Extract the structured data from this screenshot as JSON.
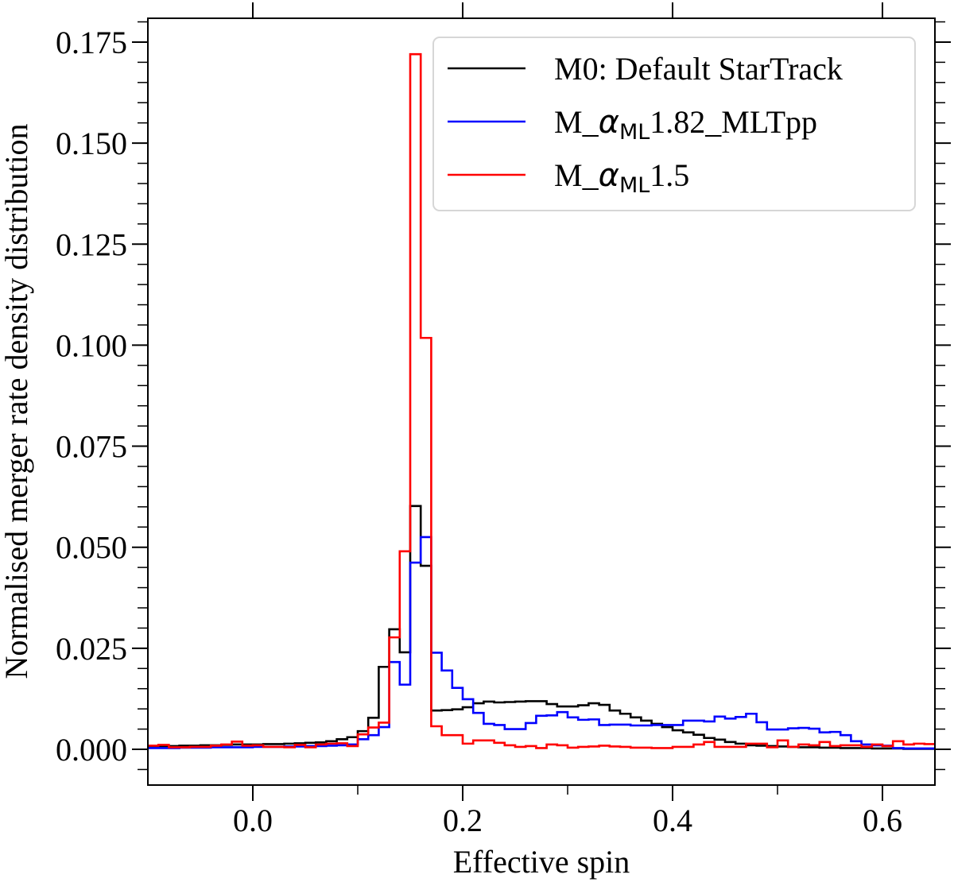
{
  "chart_data": {
    "type": "line",
    "style": "step-histogram",
    "title": "",
    "xlabel": "Effective spin",
    "ylabel": "Normalised merger rate density distribution",
    "xlim": [
      -0.1,
      0.65
    ],
    "ylim": [
      -0.009,
      0.181
    ],
    "bin_start": -0.1,
    "bin_width": 0.01,
    "x_ticks": [
      "0.0",
      "0.2",
      "0.4",
      "0.6"
    ],
    "x_tick_values": [
      0.0,
      0.2,
      0.4,
      0.6
    ],
    "y_ticks": [
      "0.000",
      "0.025",
      "0.050",
      "0.075",
      "0.100",
      "0.125",
      "0.150",
      "0.175"
    ],
    "y_tick_values": [
      0,
      0.025,
      0.05,
      0.075,
      0.1,
      0.125,
      0.15,
      0.175
    ],
    "legend_position": "top-right",
    "series": [
      {
        "name": "M0: Default StarTrack",
        "legend": {
          "prefix": "M0: Default StarTrack",
          "sym": "",
          "sub": "",
          "suffix": ""
        },
        "color": "#000000",
        "values": [
          0.0008,
          0.0008,
          0.0008,
          0.0009,
          0.0009,
          0.001,
          0.001,
          0.0011,
          0.0012,
          0.0012,
          0.0012,
          0.0013,
          0.0013,
          0.0014,
          0.0015,
          0.0016,
          0.0017,
          0.002,
          0.0025,
          0.003,
          0.0045,
          0.0078,
          0.0204,
          0.0297,
          0.024,
          0.0602,
          0.0454,
          0.0096,
          0.0097,
          0.0099,
          0.0104,
          0.0114,
          0.0118,
          0.0116,
          0.0117,
          0.0118,
          0.0119,
          0.0119,
          0.0112,
          0.0106,
          0.0106,
          0.0109,
          0.0114,
          0.011,
          0.0096,
          0.0088,
          0.0079,
          0.0071,
          0.0063,
          0.0055,
          0.0047,
          0.0042,
          0.0036,
          0.0028,
          0.0024,
          0.0018,
          0.0014,
          0.001,
          0.0009,
          0.0008,
          0.0007,
          0.0006,
          0.0005,
          0.0005,
          0.0004,
          0.0004,
          0.0003,
          0.0003,
          0.0003,
          0.0002,
          0.0002,
          0.0002,
          0.0001,
          0.0001,
          0.0001
        ]
      },
      {
        "name": "M_αML1.82_MLTpp",
        "legend": {
          "prefix": "M_",
          "sym": "α",
          "sub": "ML",
          "suffix": "1.82_MLTpp"
        },
        "color": "#0000ff",
        "values": [
          0.0003,
          0.0003,
          0.0003,
          0.0004,
          0.0004,
          0.0004,
          0.0005,
          0.0005,
          0.0005,
          0.0005,
          0.0006,
          0.0006,
          0.0006,
          0.0007,
          0.0007,
          0.0008,
          0.0008,
          0.0009,
          0.001,
          0.0012,
          0.0025,
          0.0035,
          0.0055,
          0.0216,
          0.016,
          0.0462,
          0.0525,
          0.0239,
          0.0195,
          0.0152,
          0.0124,
          0.009,
          0.0063,
          0.006,
          0.005,
          0.005,
          0.0065,
          0.0083,
          0.0084,
          0.0092,
          0.0079,
          0.0073,
          0.0074,
          0.006,
          0.0061,
          0.0061,
          0.0059,
          0.0059,
          0.006,
          0.006,
          0.006,
          0.0071,
          0.0071,
          0.0069,
          0.0081,
          0.0076,
          0.008,
          0.0088,
          0.0067,
          0.0049,
          0.0049,
          0.0052,
          0.0053,
          0.0051,
          0.0042,
          0.0043,
          0.0035,
          0.002,
          0.0012,
          0.001,
          0.0009,
          0.0003,
          0.0002,
          0.0002,
          0.0002
        ]
      },
      {
        "name": "M_αML1.5",
        "legend": {
          "prefix": "M_",
          "sym": "α",
          "sub": "ML",
          "suffix": "1.5"
        },
        "color": "#ff0000",
        "values": [
          0.0009,
          0.0011,
          0.0005,
          0.0005,
          0.0006,
          0.0006,
          0.0009,
          0.0012,
          0.0019,
          0.0009,
          0.001,
          0.0006,
          0.0006,
          0.0005,
          0.0011,
          0.0005,
          0.0012,
          0.0014,
          0.0015,
          0.0008,
          0.0037,
          0.0054,
          0.0066,
          0.0277,
          0.049,
          0.172,
          0.1018,
          0.0057,
          0.0035,
          0.0035,
          0.0014,
          0.0022,
          0.0022,
          0.0016,
          0.001,
          0.0006,
          0.0008,
          0.0003,
          0.0012,
          0.001,
          0.0004,
          0.0006,
          0.0007,
          0.0009,
          0.0007,
          0.0006,
          0.0004,
          0.0004,
          0.0003,
          0.0003,
          0.0006,
          0.0006,
          0.0012,
          0.0018,
          0.0006,
          0.0006,
          0.0006,
          0.0014,
          0.0014,
          0.0005,
          0.0022,
          0.0006,
          0.0012,
          0.001,
          0.0018,
          0.0008,
          0.001,
          0.001,
          0.0006,
          0.0012,
          0.0008,
          0.002,
          0.0012,
          0.0014,
          0.0013
        ]
      }
    ]
  }
}
